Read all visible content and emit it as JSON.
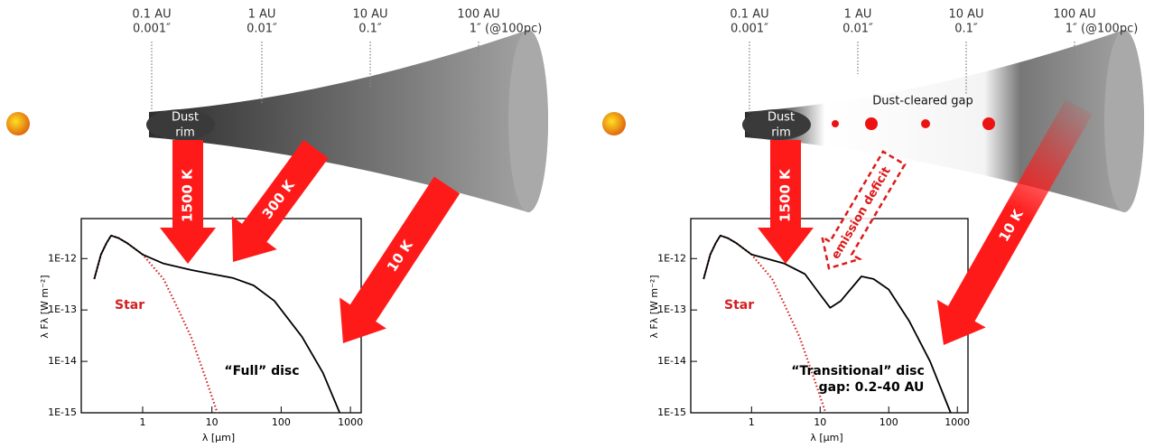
{
  "diagram": {
    "panels": [
      {
        "distance_labels": [
          {
            "au": "0.1 AU",
            "arcsec": "0.001″"
          },
          {
            "au": "1 AU",
            "arcsec": "0.01″"
          },
          {
            "au": "10 AU",
            "arcsec": "0.1″"
          },
          {
            "au": "100 AU",
            "arcsec": "1″ (@100pc)"
          }
        ],
        "rim_label": [
          "Dust",
          "rim"
        ],
        "arrows": [
          "1500 K",
          "300 K",
          "10 K"
        ]
      },
      {
        "distance_labels": [
          {
            "au": "0.1 AU",
            "arcsec": "0.001″"
          },
          {
            "au": "1 AU",
            "arcsec": "0.01″"
          },
          {
            "au": "10 AU",
            "arcsec": "0.1″"
          },
          {
            "au": "100 AU",
            "arcsec": "1″ (@100pc)"
          }
        ],
        "rim_label": [
          "Dust",
          "rim"
        ],
        "gap_label": "Dust-cleared gap",
        "deficit_label": "emission deficit",
        "arrows": [
          "1500 K",
          "10 K"
        ]
      }
    ]
  },
  "chart_data": [
    {
      "type": "line",
      "xlabel": "λ [μm]",
      "ylabel": "λ Fλ [W m⁻²]",
      "log_x": true,
      "log_y": true,
      "xlim": [
        0.13,
        1430
      ],
      "ylim": [
        1e-15,
        6e-12
      ],
      "xticks": [
        1,
        10,
        100,
        1000
      ],
      "yticks": [
        {
          "value": 1e-15,
          "label": "1E-15"
        },
        {
          "value": 1e-14,
          "label": "1E-14"
        },
        {
          "value": 1e-13,
          "label": "1E-13"
        },
        {
          "value": 1e-12,
          "label": "1E-12"
        }
      ],
      "series": [
        {
          "name": "Star",
          "color": "#d42020",
          "dash": "dotted",
          "x": [
            0.2,
            0.25,
            0.3,
            0.35,
            0.45,
            0.6,
            1,
            2,
            3,
            5,
            8,
            12
          ],
          "values": [
            4e-13,
            1.2e-12,
            2e-12,
            2.8e-12,
            2.5e-12,
            2e-12,
            1.2e-12,
            4e-13,
            1.3e-13,
            3e-14,
            5e-15,
            1e-15
          ]
        },
        {
          "name": "“Full” disc",
          "color": "#000000",
          "dash": "solid",
          "x": [
            0.2,
            0.25,
            0.3,
            0.35,
            0.45,
            0.6,
            1,
            2,
            5,
            10,
            20,
            40,
            80,
            200,
            400,
            700
          ],
          "values": [
            4e-13,
            1.2e-12,
            2e-12,
            2.8e-12,
            2.5e-12,
            2e-12,
            1.2e-12,
            8e-13,
            6e-13,
            5e-13,
            4.2e-13,
            3e-13,
            1.5e-13,
            3e-14,
            6e-15,
            1e-15
          ]
        }
      ]
    },
    {
      "type": "line",
      "xlabel": "λ [μm]",
      "ylabel": "λ Fλ [W m⁻²]",
      "log_x": true,
      "log_y": true,
      "xlim": [
        0.13,
        1430
      ],
      "ylim": [
        1e-15,
        6e-12
      ],
      "xticks": [
        1,
        10,
        100,
        1000
      ],
      "yticks": [
        {
          "value": 1e-15,
          "label": "1E-15"
        },
        {
          "value": 1e-14,
          "label": "1E-14"
        },
        {
          "value": 1e-13,
          "label": "1E-13"
        },
        {
          "value": 1e-12,
          "label": "1E-12"
        }
      ],
      "annotation": "gap: 0.2-40 AU",
      "series": [
        {
          "name": "Star",
          "color": "#d42020",
          "dash": "dotted",
          "x": [
            0.2,
            0.25,
            0.3,
            0.35,
            0.45,
            0.6,
            1,
            2,
            3,
            5,
            8,
            12
          ],
          "values": [
            4e-13,
            1.2e-12,
            2e-12,
            2.8e-12,
            2.5e-12,
            2e-12,
            1.2e-12,
            4e-13,
            1.3e-13,
            3e-14,
            5e-15,
            1e-15
          ]
        },
        {
          "name": "“Transitional” disc",
          "color": "#000000",
          "dash": "solid",
          "x": [
            0.2,
            0.25,
            0.3,
            0.35,
            0.45,
            0.6,
            1,
            3,
            6,
            10,
            14,
            20,
            40,
            60,
            100,
            200,
            400,
            800
          ],
          "values": [
            4e-13,
            1.2e-12,
            2e-12,
            2.8e-12,
            2.5e-12,
            2e-12,
            1.2e-12,
            8e-13,
            5e-13,
            2e-13,
            1.1e-13,
            1.5e-13,
            4.5e-13,
            4e-13,
            2.5e-13,
            6e-14,
            1e-14,
            1e-15
          ]
        }
      ]
    }
  ]
}
